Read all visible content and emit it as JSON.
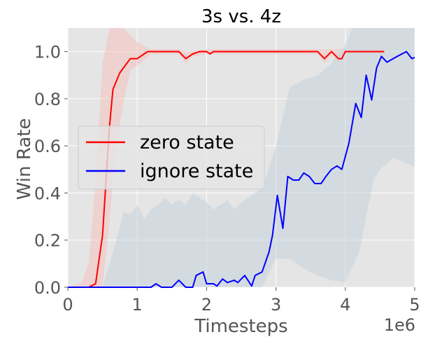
{
  "chart_data": {
    "type": "line",
    "title": "3s vs. 4z",
    "xlabel": "Timesteps",
    "ylabel": "Win Rate",
    "x_multiplier": "1e6",
    "xlim": [
      0,
      5000000
    ],
    "ylim": [
      0,
      1.1
    ],
    "xticks": [
      0,
      1000000,
      2000000,
      3000000,
      4000000,
      5000000
    ],
    "xtick_labels": [
      "0",
      "1",
      "2",
      "3",
      "4",
      "5"
    ],
    "yticks": [
      0,
      0.2,
      0.4,
      0.6,
      0.8,
      1.0
    ],
    "ytick_labels": [
      "0.0",
      "0.2",
      "0.4",
      "0.6",
      "0.8",
      "1.0"
    ],
    "grid": true,
    "legend_position": "center-left",
    "series": [
      {
        "name": "zero state",
        "color": "#ff0000",
        "band_color": "#f4c2bf",
        "points": [
          [
            0,
            0
          ],
          [
            100000,
            0
          ],
          [
            200000,
            0
          ],
          [
            300000,
            0
          ],
          [
            400000,
            0.015
          ],
          [
            500000,
            0.22
          ],
          [
            600000,
            0.68
          ],
          [
            650000,
            0.84
          ],
          [
            750000,
            0.91
          ],
          [
            900000,
            0.97
          ],
          [
            950000,
            0.97
          ],
          [
            1000000,
            0.97
          ],
          [
            1100000,
            0.99
          ],
          [
            1150000,
            1.0
          ],
          [
            1300000,
            1.0
          ],
          [
            1500000,
            1.0
          ],
          [
            1600000,
            1.0
          ],
          [
            1700000,
            0.97
          ],
          [
            1800000,
            0.99
          ],
          [
            1900000,
            1.0
          ],
          [
            2000000,
            1.0
          ],
          [
            2050000,
            0.99
          ],
          [
            2100000,
            1.0
          ],
          [
            2300000,
            1.0
          ],
          [
            2600000,
            1.0
          ],
          [
            3000000,
            1.0
          ],
          [
            3300000,
            1.0
          ],
          [
            3600000,
            1.0
          ],
          [
            3700000,
            0.97
          ],
          [
            3800000,
            1.0
          ],
          [
            3900000,
            0.97
          ],
          [
            3950000,
            0.97
          ],
          [
            4000000,
            1.0
          ],
          [
            4200000,
            1.0
          ],
          [
            4400000,
            1.0
          ],
          [
            4560000,
            1.0
          ]
        ],
        "band_upper": [
          [
            0,
            0
          ],
          [
            200000,
            0.02
          ],
          [
            300000,
            0.1
          ],
          [
            400000,
            0.45
          ],
          [
            500000,
            0.95
          ],
          [
            600000,
            1.1
          ],
          [
            800000,
            1.1
          ],
          [
            1000000,
            1.04
          ],
          [
            1200000,
            1.01
          ],
          [
            1600000,
            1.01
          ],
          [
            1700000,
            1.0
          ],
          [
            2000000,
            1.01
          ],
          [
            3600000,
            1.01
          ],
          [
            4560000,
            1.01
          ]
        ],
        "band_lower": [
          [
            0,
            0
          ],
          [
            300000,
            0
          ],
          [
            400000,
            0
          ],
          [
            500000,
            0
          ],
          [
            600000,
            0.28
          ],
          [
            700000,
            0.6
          ],
          [
            800000,
            0.78
          ],
          [
            900000,
            0.92
          ],
          [
            1000000,
            0.94
          ],
          [
            1200000,
            0.99
          ],
          [
            1600000,
            0.99
          ],
          [
            1700000,
            0.95
          ],
          [
            1800000,
            0.98
          ],
          [
            2000000,
            0.99
          ],
          [
            3600000,
            0.99
          ],
          [
            3700000,
            0.95
          ],
          [
            3800000,
            0.99
          ],
          [
            3900000,
            0.95
          ],
          [
            4000000,
            0.99
          ],
          [
            4560000,
            0.99
          ]
        ]
      },
      {
        "name": "ignore state",
        "color": "#0000ff",
        "band_color": "#c5d3de",
        "points": [
          [
            0,
            0
          ],
          [
            400000,
            0
          ],
          [
            800000,
            0
          ],
          [
            1000000,
            0
          ],
          [
            1200000,
            0
          ],
          [
            1270000,
            0.015
          ],
          [
            1350000,
            0
          ],
          [
            1500000,
            0
          ],
          [
            1600000,
            0.03
          ],
          [
            1700000,
            0
          ],
          [
            1800000,
            0
          ],
          [
            1850000,
            0.05
          ],
          [
            1950000,
            0.065
          ],
          [
            2000000,
            0.015
          ],
          [
            2100000,
            0.015
          ],
          [
            2150000,
            0.005
          ],
          [
            2230000,
            0.035
          ],
          [
            2300000,
            0.02
          ],
          [
            2400000,
            0.03
          ],
          [
            2450000,
            0.02
          ],
          [
            2550000,
            0.05
          ],
          [
            2650000,
            0.005
          ],
          [
            2700000,
            0.05
          ],
          [
            2800000,
            0.065
          ],
          [
            2900000,
            0.15
          ],
          [
            2950000,
            0.22
          ],
          [
            3020000,
            0.39
          ],
          [
            3100000,
            0.25
          ],
          [
            3170000,
            0.47
          ],
          [
            3250000,
            0.455
          ],
          [
            3330000,
            0.455
          ],
          [
            3400000,
            0.485
          ],
          [
            3480000,
            0.47
          ],
          [
            3560000,
            0.44
          ],
          [
            3650000,
            0.44
          ],
          [
            3720000,
            0.47
          ],
          [
            3800000,
            0.5
          ],
          [
            3880000,
            0.515
          ],
          [
            3950000,
            0.5
          ],
          [
            4050000,
            0.61
          ],
          [
            4150000,
            0.78
          ],
          [
            4230000,
            0.72
          ],
          [
            4300000,
            0.9
          ],
          [
            4380000,
            0.795
          ],
          [
            4450000,
            0.93
          ],
          [
            4520000,
            0.98
          ],
          [
            4600000,
            0.955
          ],
          [
            4750000,
            0.98
          ],
          [
            4880000,
            1.0
          ],
          [
            4960000,
            0.97
          ],
          [
            5000000,
            0.975
          ]
        ],
        "band_upper": [
          [
            0,
            0
          ],
          [
            500000,
            0
          ],
          [
            700000,
            0.2
          ],
          [
            800000,
            0.32
          ],
          [
            900000,
            0.31
          ],
          [
            1000000,
            0.35
          ],
          [
            1100000,
            0.29
          ],
          [
            1200000,
            0.33
          ],
          [
            1300000,
            0.35
          ],
          [
            1400000,
            0.38
          ],
          [
            1500000,
            0.35
          ],
          [
            1600000,
            0.37
          ],
          [
            1700000,
            0.35
          ],
          [
            1800000,
            0.4
          ],
          [
            1900000,
            0.38
          ],
          [
            2000000,
            0.36
          ],
          [
            2100000,
            0.33
          ],
          [
            2200000,
            0.35
          ],
          [
            2300000,
            0.37
          ],
          [
            2400000,
            0.33
          ],
          [
            2500000,
            0.36
          ],
          [
            2600000,
            0.38
          ],
          [
            2700000,
            0.4
          ],
          [
            2800000,
            0.42
          ],
          [
            3000000,
            0.6
          ],
          [
            3200000,
            0.85
          ],
          [
            3400000,
            0.88
          ],
          [
            3600000,
            0.9
          ],
          [
            3800000,
            0.95
          ],
          [
            4000000,
            1.03
          ],
          [
            4100000,
            1.1
          ],
          [
            4300000,
            1.1
          ],
          [
            4500000,
            1.1
          ],
          [
            4700000,
            1.1
          ],
          [
            5000000,
            1.1
          ]
        ],
        "band_lower": [
          [
            0,
            0
          ],
          [
            2000000,
            0
          ],
          [
            2800000,
            0
          ],
          [
            3000000,
            0.12
          ],
          [
            3200000,
            0.12
          ],
          [
            3400000,
            0.08
          ],
          [
            3600000,
            0.05
          ],
          [
            3800000,
            0.03
          ],
          [
            4000000,
            0.02
          ],
          [
            4200000,
            0.15
          ],
          [
            4300000,
            0.3
          ],
          [
            4400000,
            0.45
          ],
          [
            4500000,
            0.5
          ],
          [
            4700000,
            0.55
          ],
          [
            5000000,
            0.51
          ]
        ]
      }
    ]
  }
}
